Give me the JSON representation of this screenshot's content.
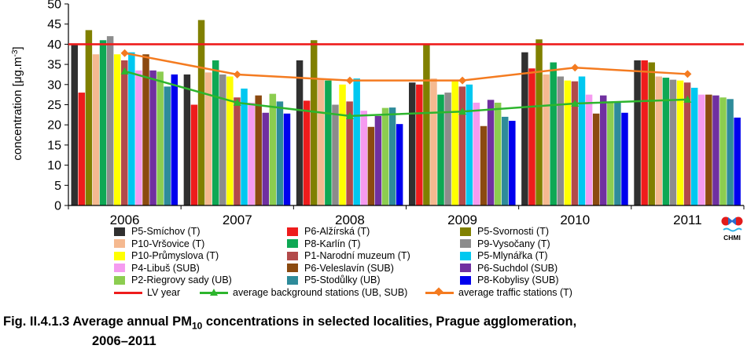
{
  "chart_data": {
    "type": "bar",
    "ylabel": "concentration [μg.m-3]",
    "ylim": [
      0,
      50
    ],
    "yticks": [
      0,
      5,
      10,
      15,
      20,
      25,
      30,
      35,
      40,
      45,
      50
    ],
    "categories": [
      "2006",
      "2007",
      "2008",
      "2009",
      "2010",
      "2011"
    ],
    "grid": false,
    "series": [
      {
        "name": "P5-Smíchov (T)",
        "color": "#303030",
        "values": [
          40.0,
          32.5,
          36.0,
          30.5,
          38.0,
          36.0
        ]
      },
      {
        "name": "P6-Alžírská (T)",
        "color": "#ee1c1c",
        "values": [
          28.0,
          25.0,
          26.0,
          30.0,
          34.0,
          36.0
        ]
      },
      {
        "name": "P5-Svornosti (T)",
        "color": "#808000",
        "values": [
          43.5,
          46.0,
          41.0,
          40.0,
          41.2,
          35.5
        ]
      },
      {
        "name": "P10-Vršovice (T)",
        "color": "#f5b990",
        "values": [
          37.5,
          33.0,
          31.5,
          31.5,
          32.5,
          32.0
        ]
      },
      {
        "name": "P8-Karlín (T)",
        "color": "#0ea854",
        "values": [
          41.0,
          36.0,
          31.0,
          27.5,
          35.5,
          31.7
        ]
      },
      {
        "name": "P9-Vysočany (T)",
        "color": "#8c8c8c",
        "values": [
          42.0,
          32.5,
          25.0,
          28.0,
          32.0,
          31.2
        ]
      },
      {
        "name": "P10-Průmyslova (T)",
        "color": "#ffff00",
        "values": [
          37.5,
          32.0,
          30.0,
          31.0,
          31.0,
          31.0
        ]
      },
      {
        "name": "P1-Narodní muzeum (T)",
        "color": "#b24a4a",
        "values": [
          36.0,
          26.8,
          25.8,
          29.5,
          30.8,
          30.5
        ]
      },
      {
        "name": "P5-Mlynářka (T)",
        "color": "#00c8f0",
        "values": [
          38.0,
          29.0,
          31.5,
          30.0,
          32.0,
          29.2
        ]
      },
      {
        "name": "P4-Libuš (SUB)",
        "color": "#f59bf0",
        "values": [
          33.5,
          25.5,
          23.5,
          25.5,
          27.5,
          27.5
        ]
      },
      {
        "name": "P6-Veleslavín (SUB)",
        "color": "#8b4a10",
        "values": [
          37.5,
          27.3,
          19.5,
          19.7,
          22.8,
          27.5
        ]
      },
      {
        "name": "P6-Suchdol (SUB)",
        "color": "#7030a0",
        "values": [
          33.5,
          23.0,
          22.2,
          26.2,
          27.3,
          27.3
        ]
      },
      {
        "name": "P2-Riegrovy sady (UB)",
        "color": "#8ccd50",
        "values": [
          33.2,
          27.7,
          24.2,
          25.5,
          25.7,
          26.8
        ]
      },
      {
        "name": "P5-Stodůlky (UB)",
        "color": "#2e8b9a",
        "values": [
          29.5,
          25.8,
          24.3,
          22.0,
          25.6,
          26.4
        ]
      },
      {
        "name": "P8-Kobylisy (SUB)",
        "color": "#0000ee",
        "values": [
          32.5,
          22.8,
          20.2,
          21.0,
          23.0,
          21.8
        ]
      }
    ],
    "lines": [
      {
        "name": "LV year",
        "color": "#ee1c1c",
        "type": "hline",
        "value": 40
      },
      {
        "name": "average background stations (UB, SUB)",
        "color": "#2db52d",
        "marker": "triangle",
        "values": [
          33.3,
          25.5,
          22.2,
          23.3,
          25.3,
          26.3
        ]
      },
      {
        "name": "average traffic stations (T)",
        "color": "#f47b20",
        "marker": "diamond",
        "values": [
          37.8,
          32.5,
          31.0,
          31.0,
          34.2,
          32.6
        ]
      }
    ]
  },
  "legend_layout_names": {
    "col1": [
      "P5-Smíchov (T)",
      "P10-Vršovice (T)",
      "P10-Průmyslova (T)",
      "P4-Libuš (SUB)",
      "P2-Riegrovy sady (UB)"
    ],
    "col2": [
      "P6-Alžírská (T)",
      "P8-Karlín (T)",
      "P1-Narodní muzeum (T)",
      "P6-Veleslavín (SUB)",
      "P5-Stodůlky (UB)"
    ],
    "col3": [
      "P5-Svornosti (T)",
      "P9-Vysočany (T)",
      "P5-Mlynářka (T)",
      "P6-Suchdol (SUB)",
      "P8-Kobylisy (SUB)"
    ]
  },
  "logo": {
    "text": "CHMI"
  },
  "caption": {
    "line1": "Fig. II.4.1.3  Average annual PM",
    "sub": "10",
    "line1_rest": " concentrations in selected localities, Prague agglomeration,",
    "line2": "2006–2011"
  }
}
